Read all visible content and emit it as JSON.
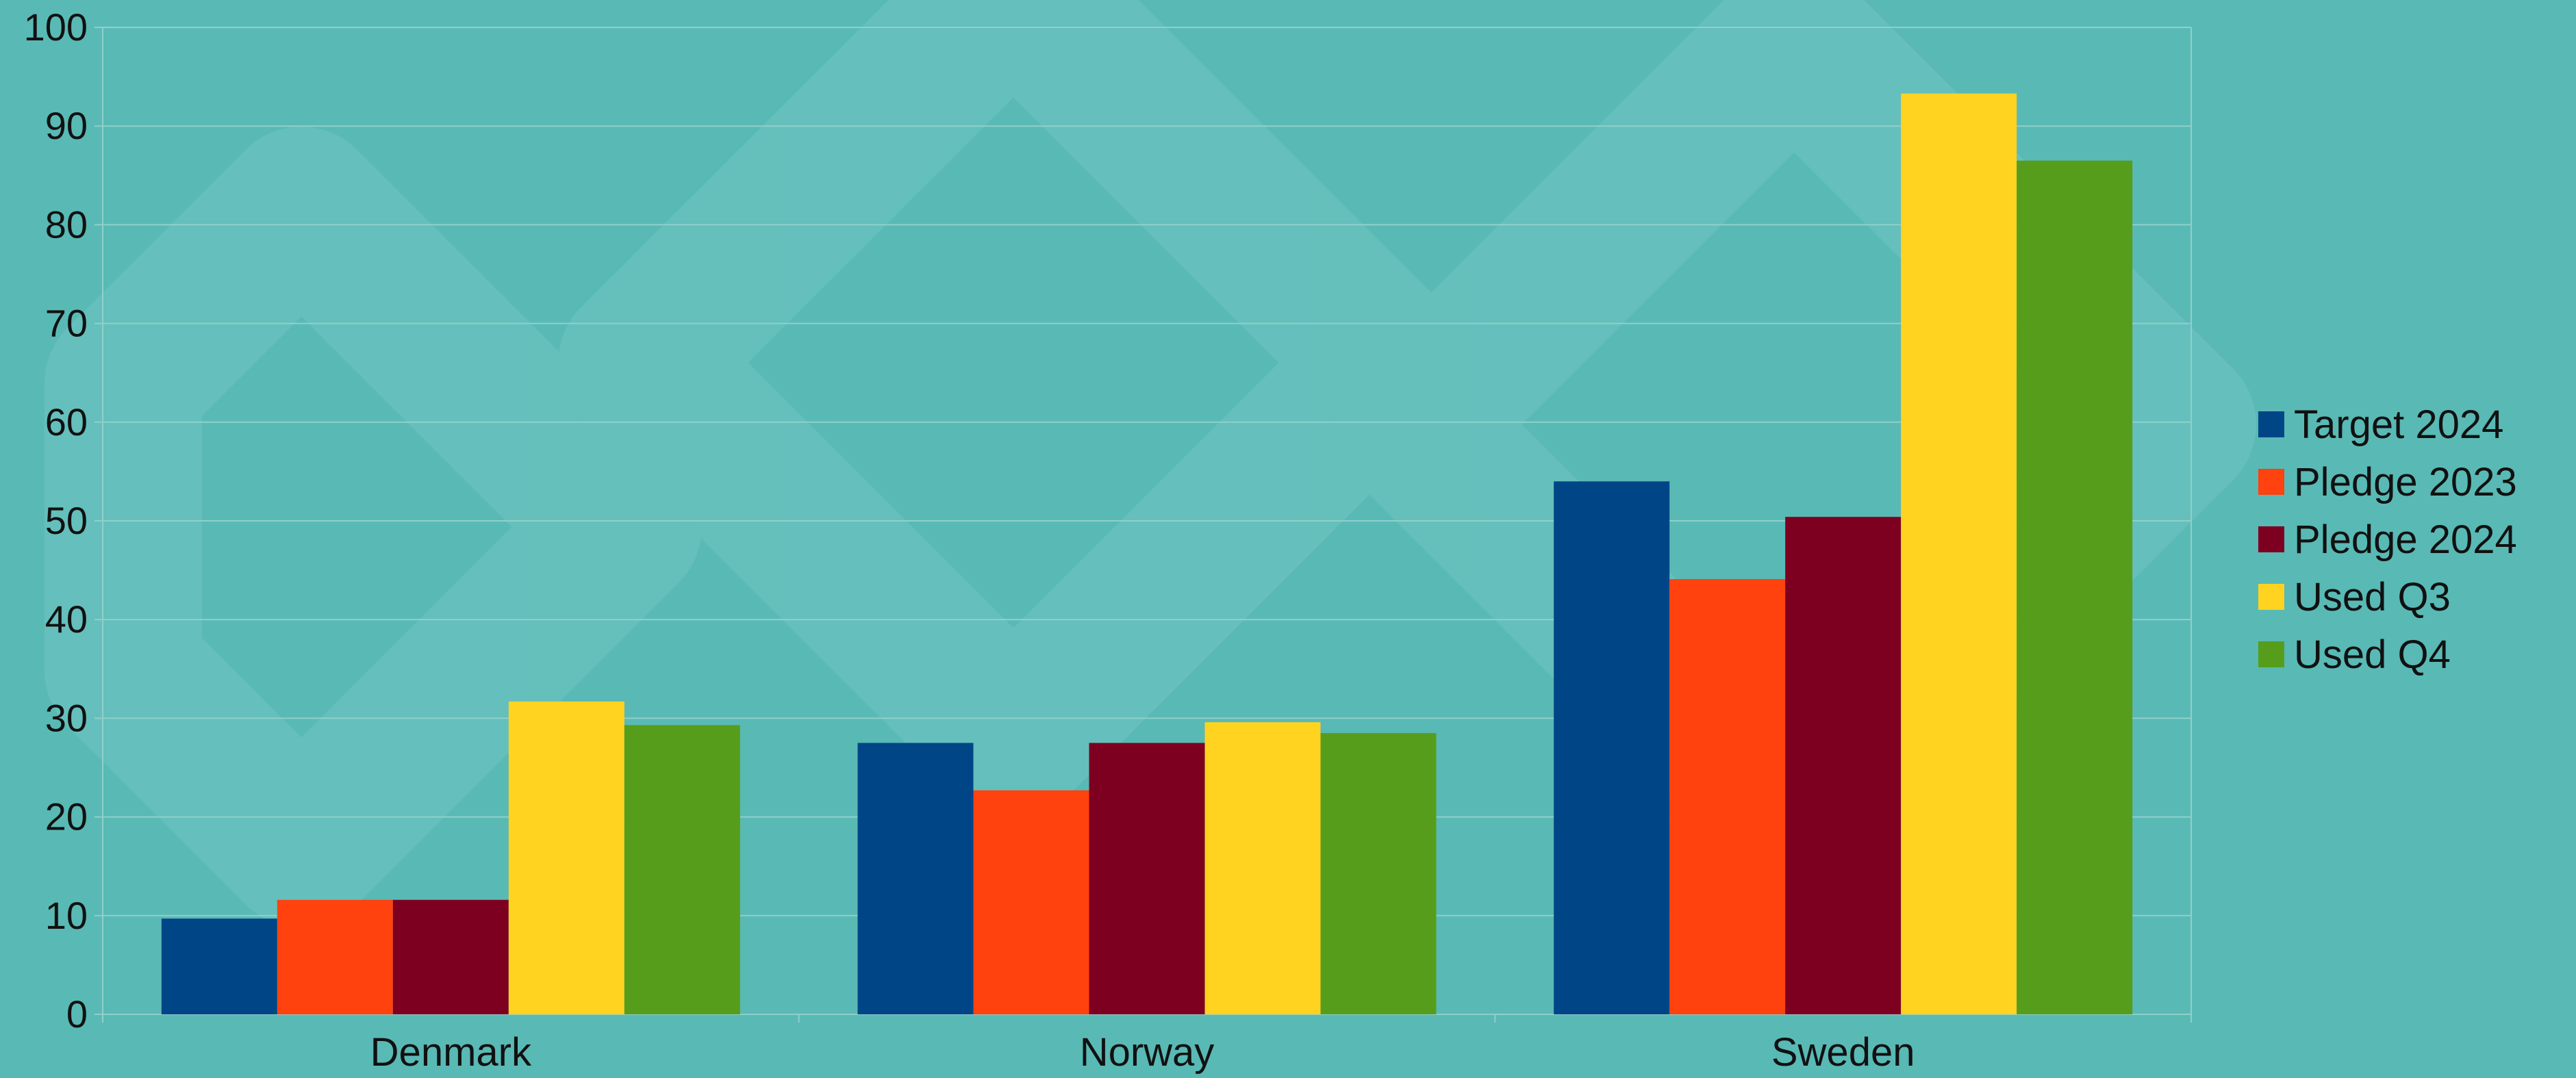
{
  "chart_data": {
    "type": "bar",
    "categories": [
      "Denmark",
      "Norway",
      "Sweden"
    ],
    "series": [
      {
        "name": "Target 2024",
        "color": "#004586",
        "values": [
          9.7,
          27.5,
          54
        ]
      },
      {
        "name": "Pledge 2023",
        "color": "#ff420e",
        "values": [
          11.6,
          22.7,
          44.1
        ]
      },
      {
        "name": "Pledge 2024",
        "color": "#7e0021",
        "values": [
          11.6,
          27.5,
          50.4
        ]
      },
      {
        "name": "Used Q3",
        "color": "#ffd320",
        "values": [
          31.7,
          29.6,
          93.3
        ]
      },
      {
        "name": "Used Q4",
        "color": "#579d1c",
        "values": [
          29.3,
          28.5,
          86.5
        ]
      }
    ],
    "ylim": [
      0,
      100
    ],
    "yticks": [
      0,
      10,
      20,
      30,
      40,
      50,
      60,
      70,
      80,
      90,
      100
    ],
    "grid": true,
    "legend_position": "right",
    "background_color": "#59b9b5",
    "grid_color": "#8fd0cc"
  }
}
